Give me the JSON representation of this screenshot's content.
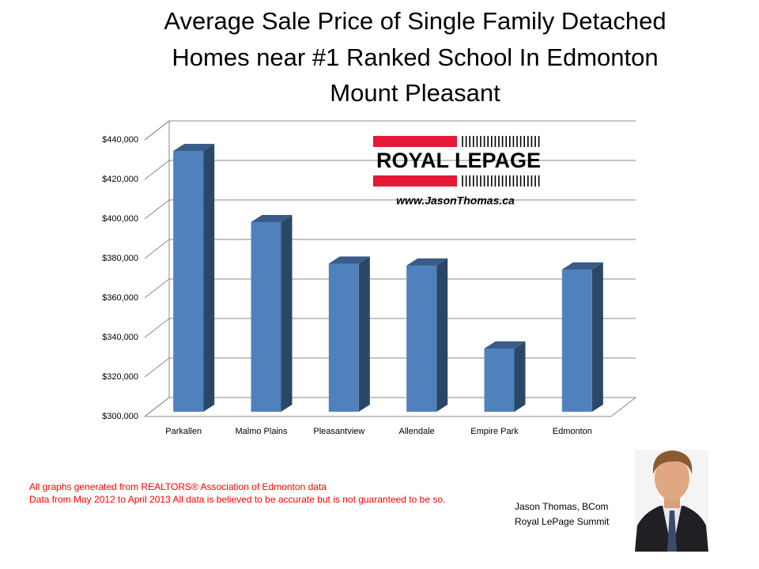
{
  "chart_data": {
    "type": "bar",
    "title": [
      "Average Sale Price of Single Family Detached",
      "Homes near #1 Ranked School In Edmonton",
      "Mount Pleasant"
    ],
    "categories": [
      "Parkallen",
      "Malmo Plains",
      "Pleasantview",
      "Allendale",
      "Empire Park",
      "Edmonton"
    ],
    "values": [
      432000,
      396000,
      375000,
      374000,
      332000,
      372000
    ],
    "color": "#4f81bd",
    "ylim": [
      300000,
      440000
    ],
    "yticks": [
      {
        "value": 300000,
        "label": "$300,000"
      },
      {
        "value": 320000,
        "label": "$320,000"
      },
      {
        "value": 340000,
        "label": "$340,000"
      },
      {
        "value": 360000,
        "label": "$360,000"
      },
      {
        "value": 380000,
        "label": "$380,000"
      },
      {
        "value": 400000,
        "label": "$400,000"
      },
      {
        "value": 420000,
        "label": "$420,000"
      },
      {
        "value": 440000,
        "label": "$440,000"
      }
    ],
    "grid": true
  },
  "logo": {
    "brand": "ROYAL LEPAGE",
    "url": "www.JasonThomas.ca"
  },
  "footnotes": [
    "All graphs generated from REALTORS® Association of Edmonton data",
    "Data from May 2012  to April 2013  All data is believed to be accurate but is not guaranteed to be so."
  ],
  "author": [
    "Jason Thomas, BCom",
    "Royal LePage Summit"
  ]
}
